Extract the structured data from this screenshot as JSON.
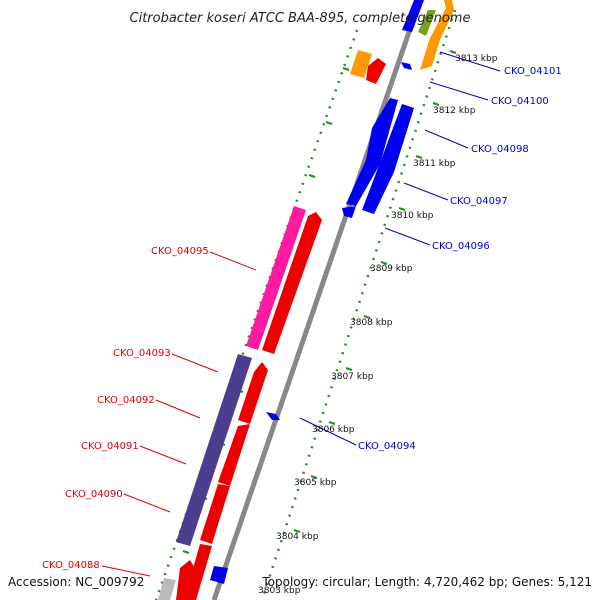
{
  "title": "Citrobacter koseri ATCC BAA-895, complete genome",
  "accession": "Accession: NC_009792",
  "topology": "Topology: circular; Length: 4,720,462 bp; Genes: 5,121",
  "colors": {
    "forward_label": "#0000cc",
    "reverse_label": "#dd0000",
    "backbone": "#888888",
    "tick": "#2a8a2a"
  },
  "ticks": [
    "3813 kbp",
    "3812 kbp",
    "3811 kbp",
    "3810 kbp",
    "3809 kbp",
    "3808 kbp",
    "3807 kbp",
    "3806 kbp",
    "3805 kbp",
    "3804 kbp",
    "3803 kbp"
  ],
  "forward_labels": [
    "CKO_04101",
    "CKO_04100",
    "CKO_04098",
    "CKO_04097",
    "CKO_04096",
    "CKO_04094"
  ],
  "reverse_labels": [
    "CKO_04095",
    "CKO_04093",
    "CKO_04092",
    "CKO_04091",
    "CKO_04090",
    "CKO_04088"
  ]
}
